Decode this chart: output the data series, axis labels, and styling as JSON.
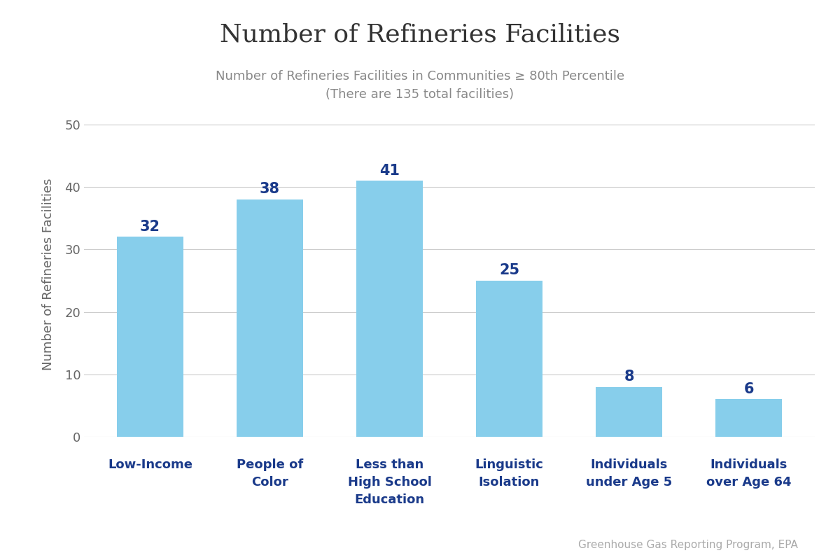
{
  "title": "Number of Refineries Facilities",
  "subtitle_line1": "Number of Refineries Facilities in Communities ≥ 80th Percentile",
  "subtitle_line2": "(There are 135 total facilities)",
  "ylabel": "Number of Refineries Facilities",
  "categories": [
    "Low-Income",
    "People of\nColor",
    "Less than\nHigh School\nEducation",
    "Linguistic\nIsolation",
    "Individuals\nunder Age 5",
    "Individuals\nover Age 64"
  ],
  "values": [
    32,
    38,
    41,
    25,
    8,
    6
  ],
  "bar_color": "#87CEEB",
  "label_color": "#1a3a8a",
  "title_color": "#333333",
  "subtitle_color": "#888888",
  "ylabel_color": "#666666",
  "tick_color": "#666666",
  "grid_color": "#cccccc",
  "caption": "Greenhouse Gas Reporting Program, EPA",
  "caption_color": "#aaaaaa",
  "ylim": [
    0,
    52
  ],
  "yticks": [
    0,
    10,
    20,
    30,
    40,
    50
  ],
  "title_fontsize": 26,
  "subtitle_fontsize": 13,
  "ylabel_fontsize": 13,
  "value_label_fontsize": 15,
  "xtick_fontsize": 13,
  "ytick_fontsize": 13,
  "caption_fontsize": 11,
  "bar_width": 0.55
}
